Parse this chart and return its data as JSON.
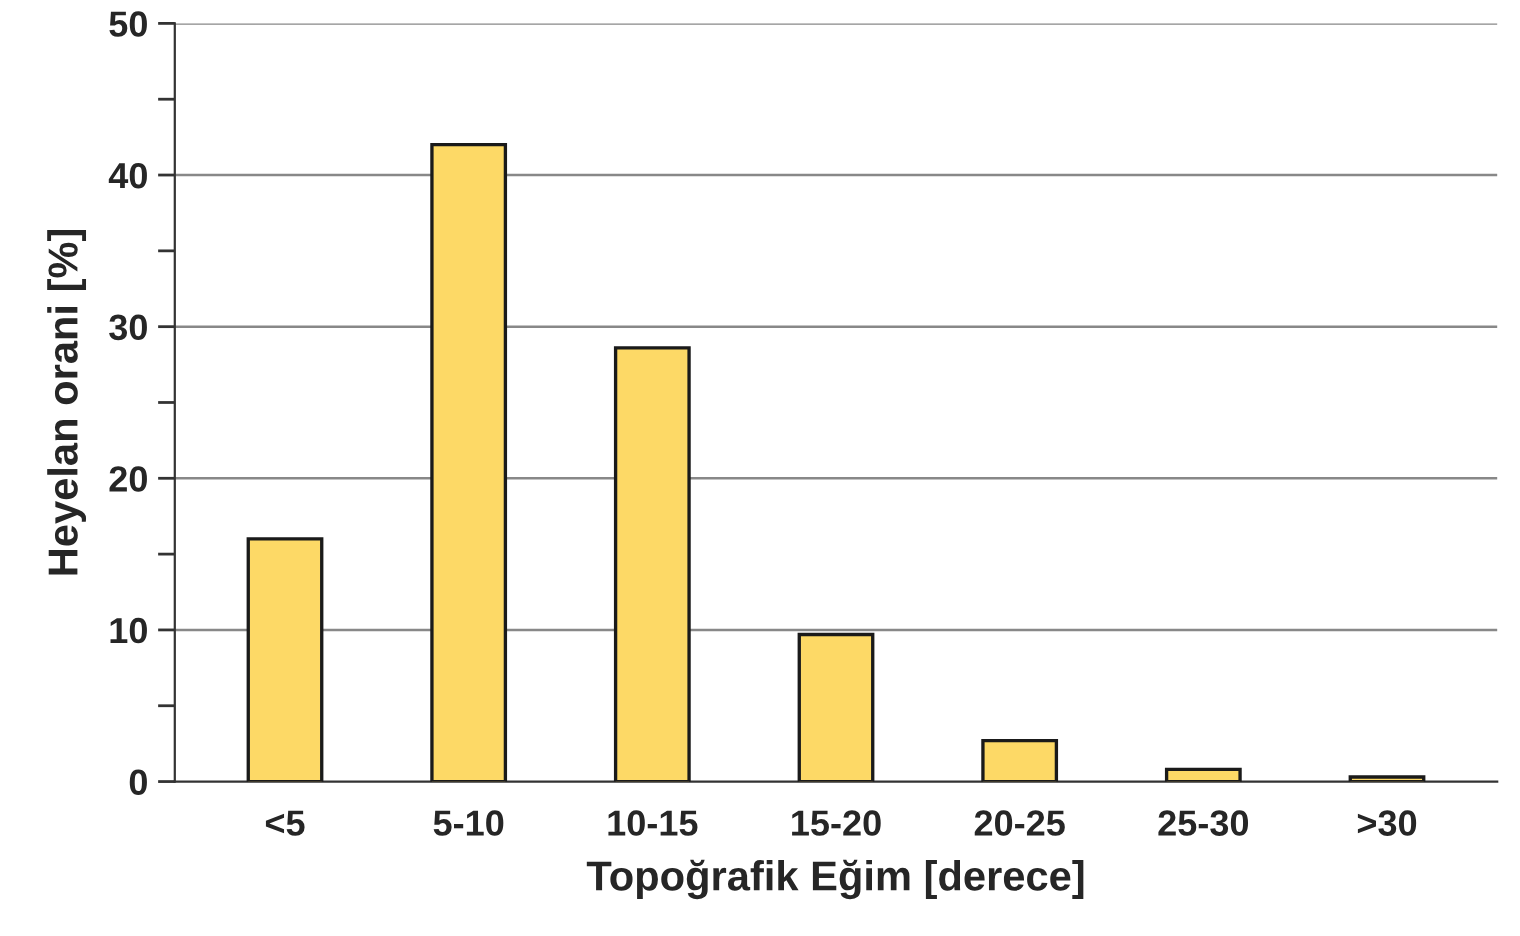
{
  "chart_data": {
    "type": "bar",
    "xlabel": "Topoğrafik Eğim [derece]",
    "ylabel": "Heyelan orani [%]",
    "categories": [
      "<5",
      "5-10",
      "10-15",
      "15-20",
      "20-25",
      "25-30",
      ">30"
    ],
    "values": [
      16,
      42,
      28.6,
      9.7,
      2.7,
      0.8,
      0.3
    ],
    "color": "#fdd966",
    "ylim": [
      0,
      50
    ],
    "yticks": [
      0,
      {
        "value": 5,
        "label": null
      },
      10,
      {
        "value": 15,
        "label": null
      },
      20,
      {
        "value": 25,
        "label": null
      },
      30,
      {
        "value": 35,
        "label": null
      },
      40,
      {
        "value": 45,
        "label": null
      },
      50
    ],
    "grid": "y"
  }
}
